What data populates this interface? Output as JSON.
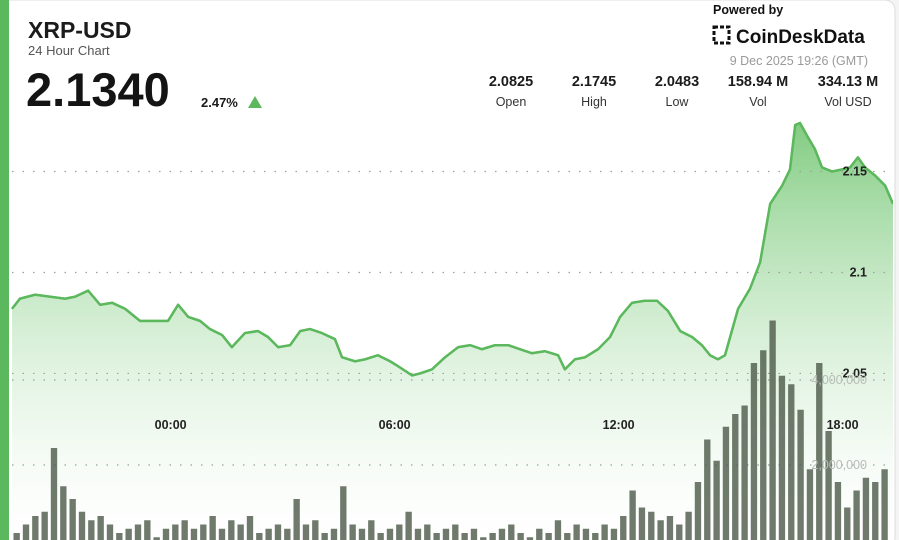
{
  "header": {
    "title": "XRP-USD",
    "subtitle": "24 Hour Chart",
    "price": "2.1340",
    "change": "2.47%",
    "powered_by": "Powered by",
    "brand": "CoinDeskData",
    "timestamp": "9 Dec 2025 19:26 (GMT)"
  },
  "stats": [
    {
      "value": "2.0825",
      "label": "Open"
    },
    {
      "value": "2.1745",
      "label": "High"
    },
    {
      "value": "2.0483",
      "label": "Low"
    },
    {
      "value": "158.94 M",
      "label": "Vol"
    },
    {
      "value": "334.13 M",
      "label": "Vol USD"
    }
  ],
  "chart_data": {
    "type": "line",
    "xlim": [
      -4.25,
      19.35
    ],
    "xticks": [
      {
        "value": 0,
        "label": "00:00"
      },
      {
        "value": 6,
        "label": "06:00"
      },
      {
        "value": 12,
        "label": "12:00"
      },
      {
        "value": 18,
        "label": "18:00"
      }
    ],
    "ylim": [
      1.97,
      2.175
    ],
    "yticks": [
      2.05,
      2.1,
      2.15
    ],
    "y2lim": [
      0,
      10000000
    ],
    "y2ticks": [
      {
        "value": 2000000,
        "label": "2,000,000"
      },
      {
        "value": 4000000,
        "label": "4,000,000"
      }
    ],
    "grid": true,
    "series": [
      {
        "color": "#5cb85c",
        "x": [
          -4.25,
          -4.04,
          -3.63,
          -3.23,
          -2.83,
          -2.56,
          -2.21,
          -1.89,
          -1.57,
          -1.22,
          -0.82,
          -0.42,
          -0.07,
          0.2,
          0.47,
          0.79,
          1.05,
          1.38,
          1.64,
          1.99,
          2.34,
          2.61,
          2.88,
          3.2,
          3.47,
          3.73,
          4.05,
          4.4,
          4.59,
          4.94,
          5.21,
          5.55,
          5.88,
          6.14,
          6.47,
          6.68,
          7.0,
          7.35,
          7.7,
          8.02,
          8.34,
          8.69,
          9.04,
          9.36,
          9.68,
          10.03,
          10.38,
          10.56,
          10.83,
          11.1,
          11.45,
          11.77,
          12.04,
          12.36,
          12.71,
          13.03,
          13.32,
          13.65,
          13.97,
          14.23,
          14.45,
          14.66,
          14.85,
          15.2,
          15.52,
          15.79,
          16.06,
          16.38,
          16.59,
          16.73,
          16.86,
          17.07,
          17.26,
          17.45,
          17.72,
          17.98,
          18.2,
          18.41,
          18.6,
          18.87,
          19.14,
          19.35
        ],
        "values": [
          2.082,
          2.087,
          2.089,
          2.088,
          2.087,
          2.088,
          2.091,
          2.084,
          2.085,
          2.082,
          2.076,
          2.076,
          2.076,
          2.084,
          2.078,
          2.076,
          2.072,
          2.069,
          2.063,
          2.07,
          2.071,
          2.068,
          2.063,
          2.064,
          2.071,
          2.072,
          2.07,
          2.067,
          2.058,
          2.056,
          2.057,
          2.059,
          2.056,
          2.053,
          2.049,
          2.05,
          2.052,
          2.058,
          2.063,
          2.064,
          2.062,
          2.064,
          2.064,
          2.062,
          2.06,
          2.061,
          2.059,
          2.052,
          2.057,
          2.058,
          2.062,
          2.068,
          2.078,
          2.085,
          2.086,
          2.086,
          2.081,
          2.071,
          2.068,
          2.064,
          2.059,
          2.057,
          2.059,
          2.082,
          2.092,
          2.105,
          2.134,
          2.143,
          2.151,
          2.173,
          2.174,
          2.167,
          2.161,
          2.152,
          2.15,
          2.151,
          2.152,
          2.157,
          2.152,
          2.148,
          2.143,
          2.134
        ]
      },
      {
        "type": "bar",
        "axis": "y2",
        "color": "#4f5d4c",
        "x": [
          -4.125,
          -3.875,
          -3.625,
          -3.375,
          -3.125,
          -2.875,
          -2.625,
          -2.375,
          -2.125,
          -1.875,
          -1.625,
          -1.375,
          -1.125,
          -0.875,
          -0.625,
          -0.375,
          -0.125,
          0.125,
          0.375,
          0.625,
          0.875,
          1.125,
          1.375,
          1.625,
          1.875,
          2.125,
          2.375,
          2.625,
          2.875,
          3.125,
          3.375,
          3.625,
          3.875,
          4.125,
          4.375,
          4.625,
          4.875,
          5.125,
          5.375,
          5.625,
          5.875,
          6.125,
          6.375,
          6.625,
          6.875,
          7.125,
          7.375,
          7.625,
          7.875,
          8.125,
          8.375,
          8.625,
          8.875,
          9.125,
          9.375,
          9.625,
          9.875,
          10.125,
          10.375,
          10.625,
          10.875,
          11.125,
          11.375,
          11.625,
          11.875,
          12.125,
          12.375,
          12.625,
          12.875,
          13.125,
          13.375,
          13.625,
          13.875,
          14.125,
          14.375,
          14.625,
          14.875,
          15.125,
          15.375,
          15.625,
          15.875,
          16.125,
          16.375,
          16.625,
          16.875,
          17.125,
          17.375,
          17.625,
          17.875,
          18.125,
          18.375,
          18.625,
          18.875,
          19.125
        ],
        "values": [
          400000,
          600000,
          800000,
          900000,
          2400000,
          1500000,
          1200000,
          900000,
          700000,
          800000,
          600000,
          400000,
          500000,
          600000,
          700000,
          300000,
          500000,
          600000,
          700000,
          500000,
          600000,
          800000,
          500000,
          700000,
          600000,
          800000,
          400000,
          500000,
          600000,
          500000,
          1200000,
          600000,
          700000,
          400000,
          500000,
          1500000,
          600000,
          500000,
          700000,
          400000,
          500000,
          600000,
          900000,
          500000,
          600000,
          400000,
          500000,
          600000,
          400000,
          500000,
          300000,
          400000,
          500000,
          600000,
          400000,
          300000,
          500000,
          400000,
          700000,
          400000,
          600000,
          500000,
          400000,
          600000,
          500000,
          800000,
          1400000,
          1000000,
          900000,
          700000,
          800000,
          600000,
          900000,
          1600000,
          2600000,
          2100000,
          2900000,
          3200000,
          3400000,
          4400000,
          4700000,
          5400000,
          4100000,
          3900000,
          3300000,
          1900000,
          4400000,
          2800000,
          1600000,
          1000000,
          1400000,
          1700000,
          1600000,
          1900000
        ]
      }
    ]
  }
}
